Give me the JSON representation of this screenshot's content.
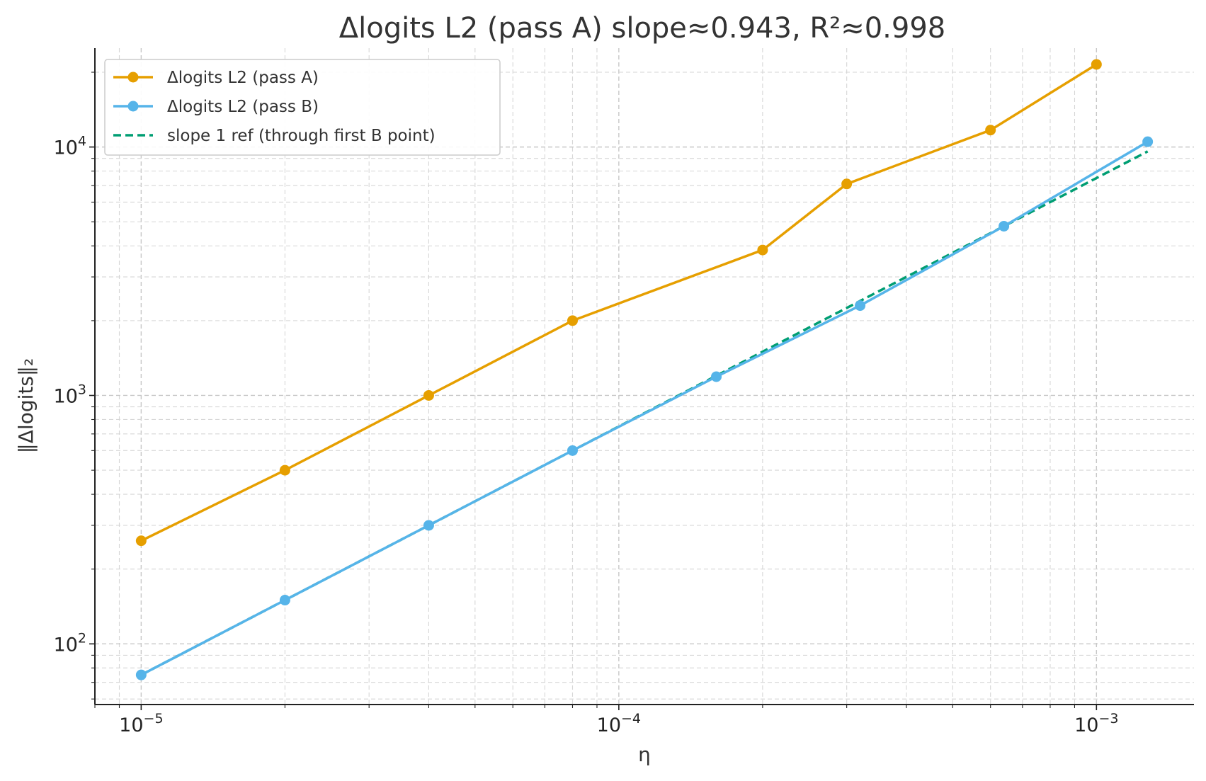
{
  "chart_data": {
    "type": "line",
    "title": "Δlogits L2 (pass A)  slope≈0.943,  R²≈0.998",
    "xlabel": "η",
    "ylabel": "‖Δlogits‖₂",
    "xscale": "log",
    "yscale": "log",
    "xlim": [
      8e-06,
      0.0016
    ],
    "ylim": [
      57,
      25000
    ],
    "grid": true,
    "grid_style": "dashed",
    "legend_position": "top-left",
    "x_ticks": [
      {
        "value": 1e-05,
        "base": "10",
        "exp": "−5"
      },
      {
        "value": 0.0001,
        "base": "10",
        "exp": "−4"
      },
      {
        "value": 0.001,
        "base": "10",
        "exp": "−3"
      }
    ],
    "y_ticks": [
      {
        "value": 100,
        "base": "10",
        "exp": "2"
      },
      {
        "value": 1000,
        "base": "10",
        "exp": "3"
      },
      {
        "value": 10000,
        "base": "10",
        "exp": "4"
      }
    ],
    "series": [
      {
        "name": "Δlogits L2 (pass A)",
        "color": "#E69F00",
        "style": "solid",
        "marker": true,
        "x": [
          1e-05,
          2e-05,
          4e-05,
          8e-05,
          0.0002,
          0.0003,
          0.0006,
          0.001
        ],
        "y": [
          260,
          500,
          1000,
          2000,
          3850,
          7100,
          11700,
          21500
        ]
      },
      {
        "name": "Δlogits L2 (pass B)",
        "color": "#56B4E9",
        "style": "solid",
        "marker": true,
        "x": [
          1e-05,
          2e-05,
          4e-05,
          8e-05,
          0.00016,
          0.00032,
          0.00064,
          0.00128
        ],
        "y": [
          75,
          150,
          300,
          600,
          1190,
          2300,
          4800,
          10500
        ]
      },
      {
        "name": "slope 1 ref (through first B point)",
        "color": "#009E73",
        "style": "dashed",
        "marker": false,
        "x": [
          1e-05,
          0.00128
        ],
        "y": [
          75,
          9600
        ]
      }
    ]
  }
}
